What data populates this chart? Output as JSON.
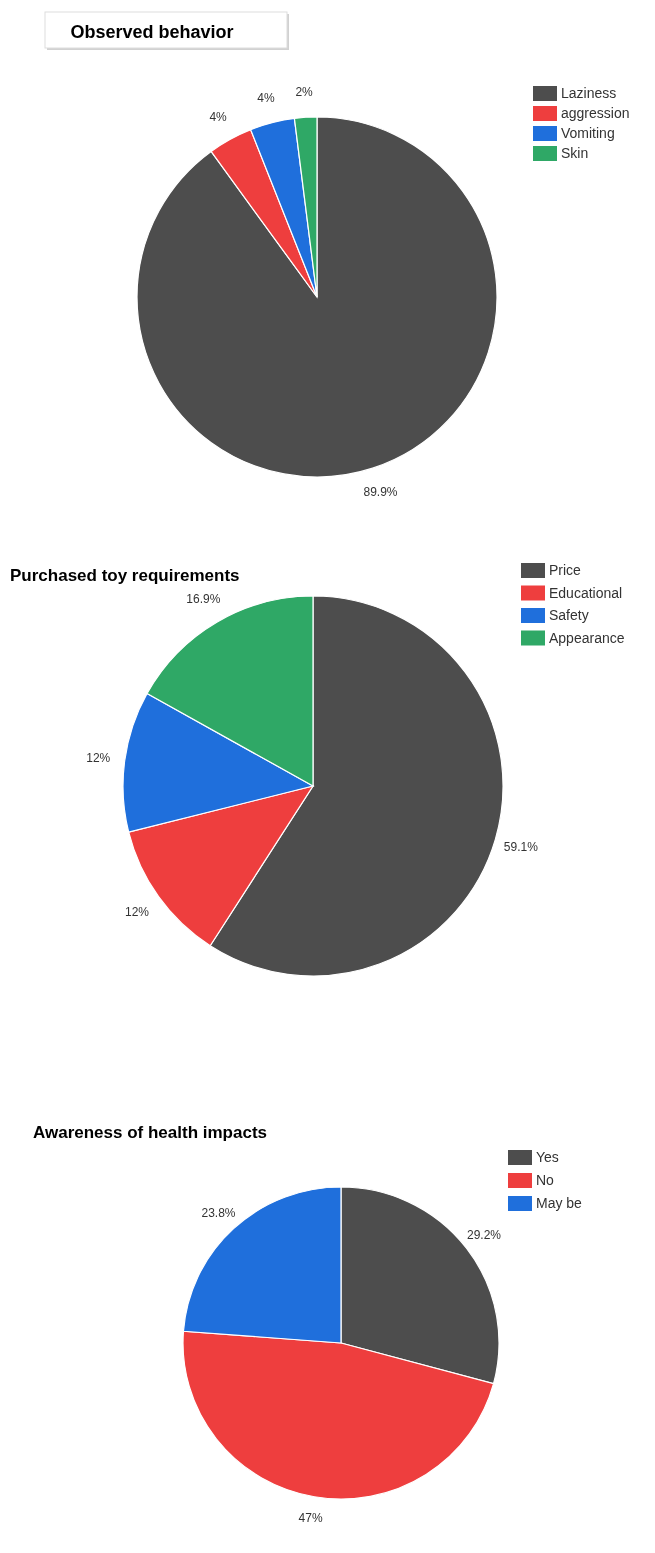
{
  "chart_data": [
    {
      "type": "pie",
      "title": "Observed behavior",
      "categories": [
        "Laziness",
        "aggression",
        "Vomiting",
        "Skin"
      ],
      "values": [
        89.9,
        4,
        4,
        2
      ],
      "colors": [
        "#4d4d4d",
        "#ee3e3e",
        "#1f6fdc",
        "#2fa866"
      ],
      "value_labels": [
        "89.9%",
        "4%",
        "4%",
        "2%"
      ],
      "legend": "top right"
    },
    {
      "type": "pie",
      "title": "Purchased toy requirements",
      "categories": [
        "Price",
        "Educational",
        "Safety",
        "Appearance"
      ],
      "values": [
        59.1,
        12,
        12,
        16.9
      ],
      "colors": [
        "#4d4d4d",
        "#ee3e3e",
        "#1f6fdc",
        "#2fa866"
      ],
      "value_labels": [
        "59.1%",
        "12%",
        "12%",
        "16.9%"
      ],
      "legend": "top right"
    },
    {
      "type": "pie",
      "title": "Awareness of health impacts",
      "categories": [
        "Yes",
        "No",
        "May be"
      ],
      "values": [
        29.2,
        47,
        23.8
      ],
      "colors": [
        "#4d4d4d",
        "#ee3e3e",
        "#1f6fdc"
      ],
      "value_labels": [
        "29.2%",
        "47%",
        "23.8%"
      ],
      "legend": "top right"
    }
  ]
}
